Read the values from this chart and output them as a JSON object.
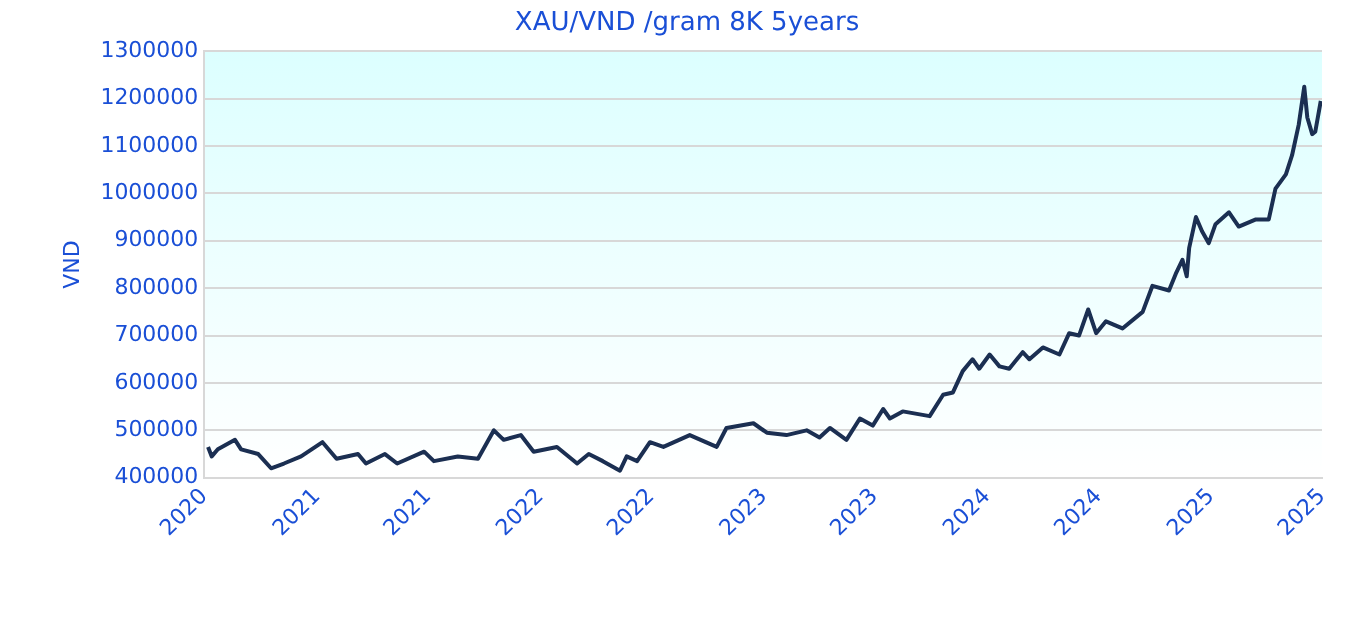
{
  "chart_data": {
    "type": "line",
    "title": "XAU/VND /gram 8K 5years",
    "ylabel": "VND",
    "x": [
      "2020-07-07",
      "2020-07-13",
      "2020-07-23",
      "2020-08-20",
      "2020-08-30",
      "2020-09-27",
      "2020-10-18",
      "2020-11-08",
      "2020-12-06",
      "2021-01-10",
      "2021-02-02",
      "2021-03-09",
      "2021-03-22",
      "2021-04-22",
      "2021-05-12",
      "2021-06-25",
      "2021-07-11",
      "2021-08-19",
      "2021-09-21",
      "2021-10-17",
      "2021-11-02",
      "2021-11-30",
      "2021-12-21",
      "2022-01-28",
      "2022-03-02",
      "2022-03-21",
      "2022-04-13",
      "2022-05-11",
      "2022-05-22",
      "2022-06-08",
      "2022-06-29",
      "2022-07-21",
      "2022-09-02",
      "2022-10-16",
      "2022-11-01",
      "2022-12-15",
      "2023-01-06",
      "2023-02-07",
      "2023-03-12",
      "2023-04-02",
      "2023-04-19",
      "2023-05-16",
      "2023-06-07",
      "2023-06-28",
      "2023-07-15",
      "2023-07-26",
      "2023-08-16",
      "2023-09-29",
      "2023-10-21",
      "2023-11-06",
      "2023-11-22",
      "2023-12-08",
      "2023-12-19",
      "2024-01-05",
      "2024-01-21",
      "2024-02-06",
      "2024-02-28",
      "2024-03-10",
      "2024-04-01",
      "2024-04-28",
      "2024-05-14",
      "2024-05-30",
      "2024-06-14",
      "2024-06-27",
      "2024-07-13",
      "2024-08-09",
      "2024-09-11",
      "2024-09-27",
      "2024-10-24",
      "2024-11-04",
      "2024-11-15",
      "2024-11-22",
      "2024-11-26",
      "2024-12-07",
      "2024-12-17",
      "2024-12-28",
      "2025-01-08",
      "2025-01-30",
      "2025-02-15",
      "2025-03-15",
      "2025-04-05",
      "2025-04-16",
      "2025-05-03",
      "2025-05-13",
      "2025-05-24",
      "2025-06-02",
      "2025-06-07",
      "2025-06-15",
      "2025-06-20",
      "2025-06-29"
    ],
    "series": [
      {
        "color": "#1b2f52",
        "values": [
          465000,
          445000,
          460000,
          480000,
          460000,
          450000,
          420000,
          430000,
          445000,
          475000,
          440000,
          450000,
          430000,
          450000,
          430000,
          455000,
          435000,
          445000,
          440000,
          500000,
          480000,
          490000,
          455000,
          465000,
          430000,
          450000,
          435000,
          415000,
          445000,
          435000,
          475000,
          465000,
          490000,
          465000,
          505000,
          515000,
          495000,
          490000,
          500000,
          485000,
          505000,
          480000,
          525000,
          510000,
          545000,
          525000,
          540000,
          530000,
          575000,
          580000,
          625000,
          650000,
          630000,
          660000,
          635000,
          630000,
          665000,
          650000,
          675000,
          660000,
          705000,
          700000,
          755000,
          705000,
          730000,
          715000,
          750000,
          805000,
          795000,
          830000,
          860000,
          825000,
          885000,
          950000,
          920000,
          895000,
          935000,
          960000,
          930000,
          945000,
          945000,
          1010000,
          1040000,
          1080000,
          1145000,
          1225000,
          1160000,
          1125000,
          1130000,
          1195000
        ]
      }
    ],
    "xlim": [
      "2020-07-01",
      "2025-07-01"
    ],
    "xticks": [
      {
        "value": "2020-07-01",
        "label": "2020"
      },
      {
        "value": "2021-01-01",
        "label": "2021"
      },
      {
        "value": "2021-07-01",
        "label": "2021"
      },
      {
        "value": "2022-01-01",
        "label": "2022"
      },
      {
        "value": "2022-07-01",
        "label": "2022"
      },
      {
        "value": "2023-01-01",
        "label": "2023"
      },
      {
        "value": "2023-07-01",
        "label": "2023"
      },
      {
        "value": "2024-01-01",
        "label": "2024"
      },
      {
        "value": "2024-07-01",
        "label": "2024"
      },
      {
        "value": "2025-01-01",
        "label": "2025"
      },
      {
        "value": "2025-07-01",
        "label": "2025"
      }
    ],
    "ylim": [
      400000,
      1300000
    ],
    "yticks": [
      400000,
      500000,
      600000,
      700000,
      800000,
      900000,
      1000000,
      1100000,
      1200000,
      1300000
    ],
    "grid": "y",
    "legend": false,
    "marker": "none",
    "line_style": "solid"
  }
}
